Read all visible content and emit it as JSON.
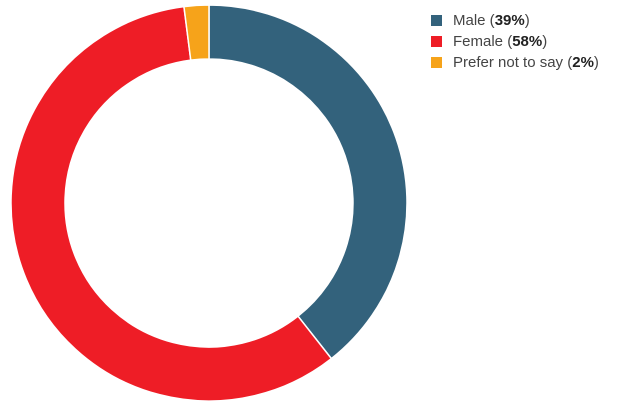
{
  "chart_data": {
    "type": "pie",
    "variant": "donut",
    "categories": [
      "Male",
      "Female",
      "Prefer not to say"
    ],
    "values": [
      39,
      58,
      2
    ],
    "value_labels": [
      "39%",
      "58%",
      "2%"
    ],
    "colors": [
      "#33627c",
      "#ee1d26",
      "#f6a31a"
    ],
    "legend_position": "top-right"
  },
  "legend": [
    {
      "label": "Male",
      "pct": "39%",
      "color": "#33627c"
    },
    {
      "label": "Female",
      "pct": "58%",
      "color": "#ee1d26"
    },
    {
      "label": "Prefer not to say",
      "pct": "2%",
      "color": "#f6a31a"
    }
  ]
}
